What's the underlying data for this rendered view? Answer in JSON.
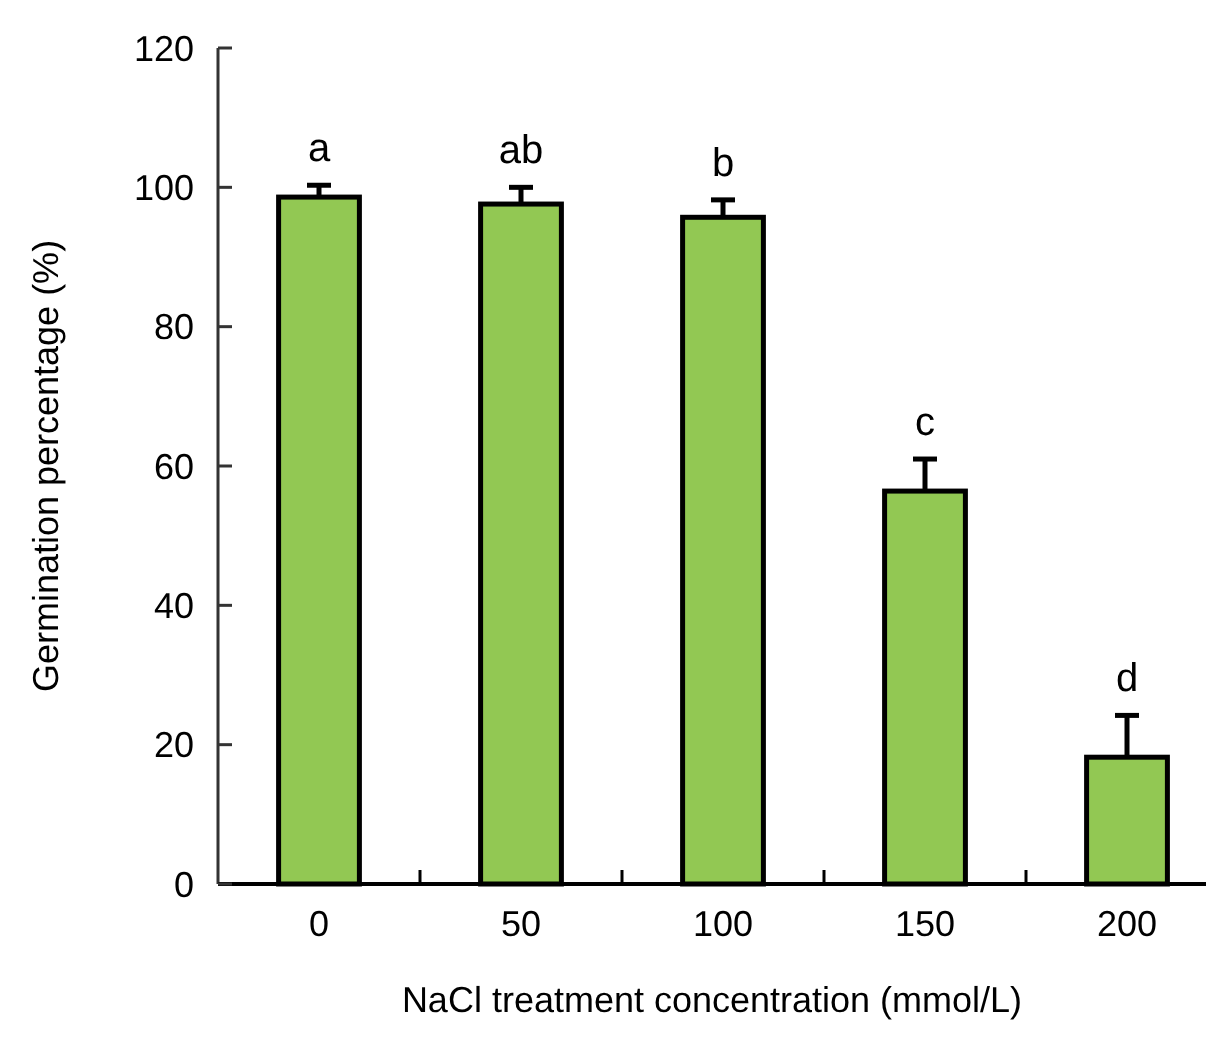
{
  "chart_data": {
    "type": "bar",
    "xlabel": "NaCl treatment concentration (mmol/L)",
    "ylabel": "Germination percentage (%)",
    "categories": [
      "0",
      "50",
      "100",
      "150",
      "200"
    ],
    "values": [
      98.6,
      97.6,
      95.7,
      56.4,
      18.2
    ],
    "errors": [
      1.7,
      2.4,
      2.5,
      4.6,
      6.0
    ],
    "color": "#92c853",
    "ylim": [
      0,
      120
    ],
    "yticks": [
      0,
      20,
      40,
      60,
      80,
      100,
      120
    ],
    "annotations": [
      {
        "text": "a",
        "x": "0",
        "y": 100.3
      },
      {
        "text": "ab",
        "x": "50",
        "y": 100
      },
      {
        "text": "b",
        "x": "100",
        "y": 98.2
      },
      {
        "text": "c",
        "x": "150",
        "y": 61.0
      },
      {
        "text": "d",
        "x": "200",
        "y": 24.2
      }
    ]
  }
}
